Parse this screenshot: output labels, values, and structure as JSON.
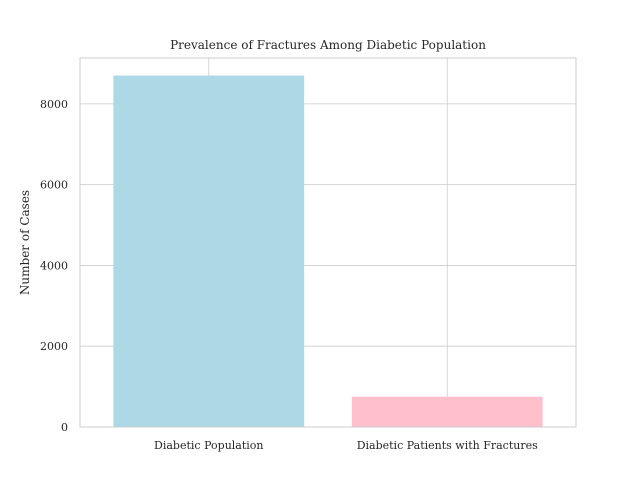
{
  "chart_data": {
    "type": "bar",
    "title": "Prevalence of Fractures Among Diabetic Population",
    "xlabel": "",
    "ylabel": "Number of Cases",
    "categories": [
      "Diabetic Population",
      "Diabetic Patients with Fractures"
    ],
    "values": [
      8700,
      750
    ],
    "colors": [
      "#add8e6",
      "#ffc0cb"
    ],
    "ylim": [
      0,
      9135
    ],
    "yticks": [
      0,
      2000,
      4000,
      6000,
      8000
    ],
    "ytick_labels": [
      "0",
      "2000",
      "4000",
      "6000",
      "8000"
    ],
    "grid": true
  }
}
